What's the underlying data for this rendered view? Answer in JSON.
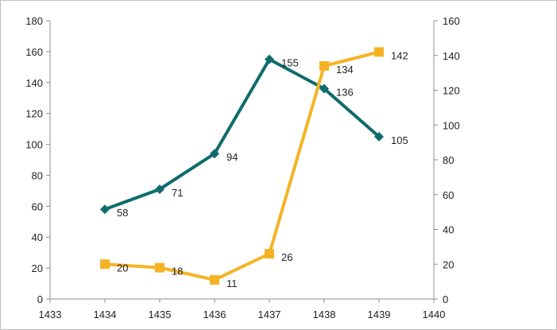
{
  "chart_data": {
    "type": "line",
    "title": "",
    "xlabel": "",
    "ylabel": "",
    "y2label": "",
    "xlim": [
      1433,
      1440
    ],
    "ylim": [
      0,
      180
    ],
    "y2lim": [
      0,
      160
    ],
    "grid": false,
    "legend": "none",
    "x_ticks": [
      "1433",
      "1434",
      "1435",
      "1436",
      "1437",
      "1438",
      "1439",
      "1440"
    ],
    "y_ticks": [
      "0",
      "20",
      "40",
      "60",
      "80",
      "100",
      "120",
      "140",
      "160",
      "180"
    ],
    "y2_ticks": [
      "0",
      "20",
      "40",
      "60",
      "80",
      "100",
      "120",
      "140",
      "160"
    ],
    "series": [
      {
        "axis": "left",
        "color": "#0f6b6b",
        "marker": "diamond",
        "x": [
          1434,
          1435,
          1436,
          1437,
          1438,
          1439
        ],
        "values": [
          58,
          71,
          94,
          155,
          136,
          105
        ],
        "labels": [
          "58",
          "71",
          "94",
          "155",
          "136",
          "105"
        ]
      },
      {
        "axis": "right",
        "color": "#f5b324",
        "marker": "square",
        "x": [
          1434,
          1435,
          1436,
          1437,
          1438,
          1439
        ],
        "values": [
          20,
          18,
          11,
          26,
          134,
          142
        ],
        "labels": [
          "20",
          "18",
          "11",
          "26",
          "134",
          "142"
        ]
      }
    ]
  }
}
